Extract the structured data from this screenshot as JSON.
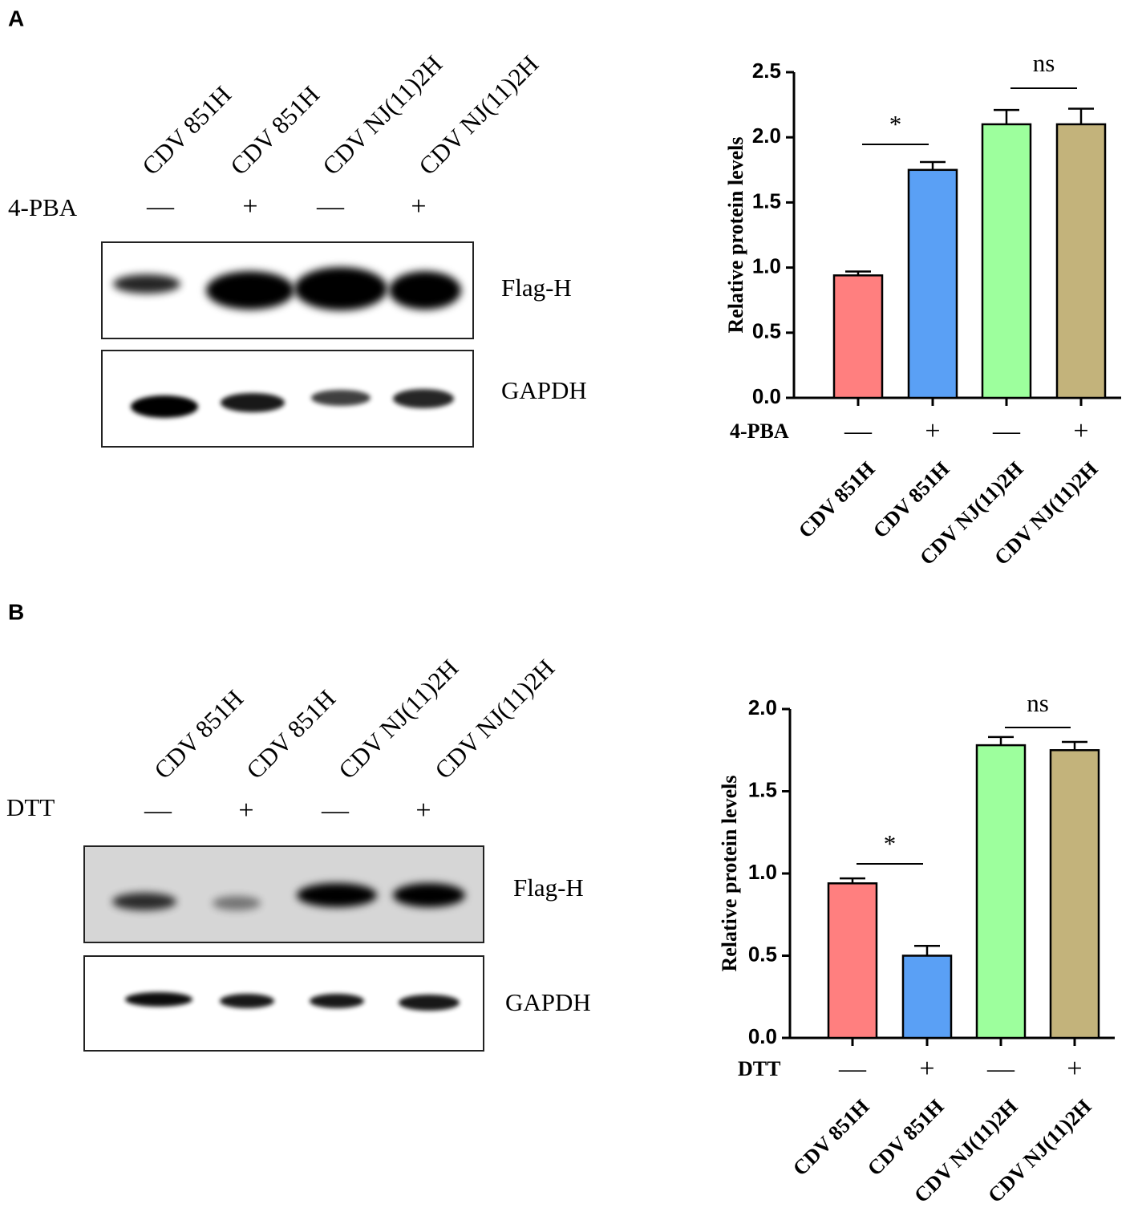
{
  "blots": [
    {
      "label": "A",
      "lanes": [
        "CDV 851H",
        "CDV 851H",
        "CDV NJ(11)2H",
        "CDV NJ(11)2H"
      ],
      "treatment": "4-PBA",
      "signs": [
        "—",
        "+",
        "—",
        "+"
      ],
      "rows": [
        "Flag-H",
        "GAPDH"
      ]
    },
    {
      "label": "B",
      "lanes": [
        "CDV 851H",
        "CDV 851H",
        "CDV NJ(11)2H",
        "CDV NJ(11)2H"
      ],
      "treatment": "DTT",
      "signs": [
        "—",
        "+",
        "—",
        "+"
      ],
      "rows": [
        "Flag-H",
        "GAPDH"
      ]
    }
  ],
  "chart_data": [
    {
      "type": "bar",
      "ylabel": "Relative protein levels",
      "categories": [
        "CDV 851H",
        "CDV 851H",
        "CDV NJ(11)2H",
        "CDV NJ(11)2H"
      ],
      "treatment": "4-PBA",
      "treatment_signs": [
        "—",
        "+",
        "—",
        "+"
      ],
      "values": [
        0.94,
        1.75,
        2.1,
        2.1
      ],
      "errors": [
        0.03,
        0.06,
        0.11,
        0.12
      ],
      "colors": [
        "#ff7f7f",
        "#5aa0f5",
        "#9dff9d",
        "#c3b37b"
      ],
      "ylim": [
        0,
        2.5
      ],
      "yticks": [
        {
          "value": 0,
          "label": "0.0"
        },
        0.5,
        {
          "value": 1,
          "label": "1.0"
        },
        1.5,
        {
          "value": 2,
          "label": "2.0"
        },
        2.5
      ],
      "annotations": [
        "*",
        "ns"
      ]
    },
    {
      "type": "bar",
      "ylabel": "Relative protein levels",
      "categories": [
        "CDV 851H",
        "CDV 851H",
        "CDV NJ(11)2H",
        "CDV NJ(11)2H"
      ],
      "treatment": "DTT",
      "treatment_signs": [
        "—",
        "+",
        "—",
        "+"
      ],
      "values": [
        0.94,
        0.5,
        1.78,
        1.75
      ],
      "errors": [
        0.03,
        0.06,
        0.05,
        0.05
      ],
      "colors": [
        "#ff7f7f",
        "#5aa0f5",
        "#9dff9d",
        "#c3b37b"
      ],
      "ylim": [
        0,
        2
      ],
      "yticks": [
        {
          "value": 0,
          "label": "0.0"
        },
        0.5,
        {
          "value": 1,
          "label": "1.0"
        },
        1.5,
        {
          "value": 2,
          "label": "2.0"
        }
      ],
      "annotations": [
        "*",
        "ns"
      ]
    }
  ]
}
